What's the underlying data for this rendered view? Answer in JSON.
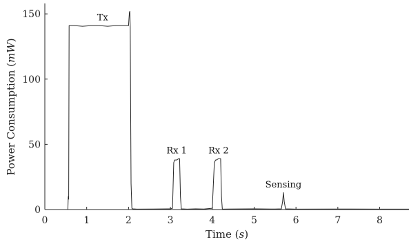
{
  "chart_data": {
    "type": "line",
    "title": "",
    "xlabel": "Time (s)",
    "xlabel_parts": {
      "text": "Time (",
      "var": "s",
      "close": ")"
    },
    "ylabel": "Power Consumption (mW)",
    "ylabel_parts": {
      "text": "Power Consumption (",
      "var": "mW",
      "close": ")"
    },
    "xlim": [
      0,
      8.7
    ],
    "ylim": [
      0,
      158
    ],
    "xticks": [
      0,
      1,
      2,
      3,
      4,
      5,
      6,
      7,
      8
    ],
    "yticks": [
      0,
      50,
      100,
      150
    ],
    "grid": false,
    "line_color": "#262626",
    "series": [
      {
        "x": [
          0,
          0.55,
          0.56,
          0.57,
          0.58,
          0.59,
          0.6,
          0.62,
          0.7,
          0.9,
          1.1,
          1.3,
          1.5,
          1.7,
          1.9,
          2.0,
          2.02,
          2.03,
          2.04,
          2.05,
          2.06,
          2.08,
          2.1,
          2.2,
          2.6,
          3.0,
          3.05,
          3.08,
          3.1,
          3.15,
          3.2,
          3.22,
          3.24,
          3.26,
          3.4,
          3.6,
          3.8,
          4.0,
          4.05,
          4.08,
          4.1,
          4.15,
          4.2,
          4.22,
          4.24,
          4.26,
          4.4,
          5.0,
          5.4,
          5.5,
          5.65,
          5.68,
          5.7,
          5.72,
          5.75,
          6.0,
          7.0,
          8.0,
          8.7
        ],
        "y": [
          0,
          0,
          10,
          8,
          141,
          141,
          141,
          141,
          141,
          140.5,
          141,
          141,
          140.5,
          141,
          141,
          141,
          151,
          152,
          140,
          80,
          20,
          1,
          0.5,
          0.3,
          0.4,
          0.5,
          1,
          36,
          38,
          38,
          39,
          39,
          10,
          0.5,
          0.3,
          0.5,
          0.4,
          1,
          36,
          38,
          38,
          39,
          39,
          10,
          0.5,
          0.3,
          0.4,
          0.5,
          0.4,
          0.4,
          0.5,
          6,
          13,
          6,
          0.5,
          0.3,
          0.4,
          0.3,
          0.3
        ]
      }
    ],
    "annotations": [
      {
        "text": "Tx",
        "x": 1.38,
        "y": 145
      },
      {
        "text": "Rx 1",
        "x": 3.15,
        "y": 43
      },
      {
        "text": "Rx 2",
        "x": 4.15,
        "y": 43
      },
      {
        "text": "Sensing",
        "x": 5.7,
        "y": 17
      }
    ]
  }
}
